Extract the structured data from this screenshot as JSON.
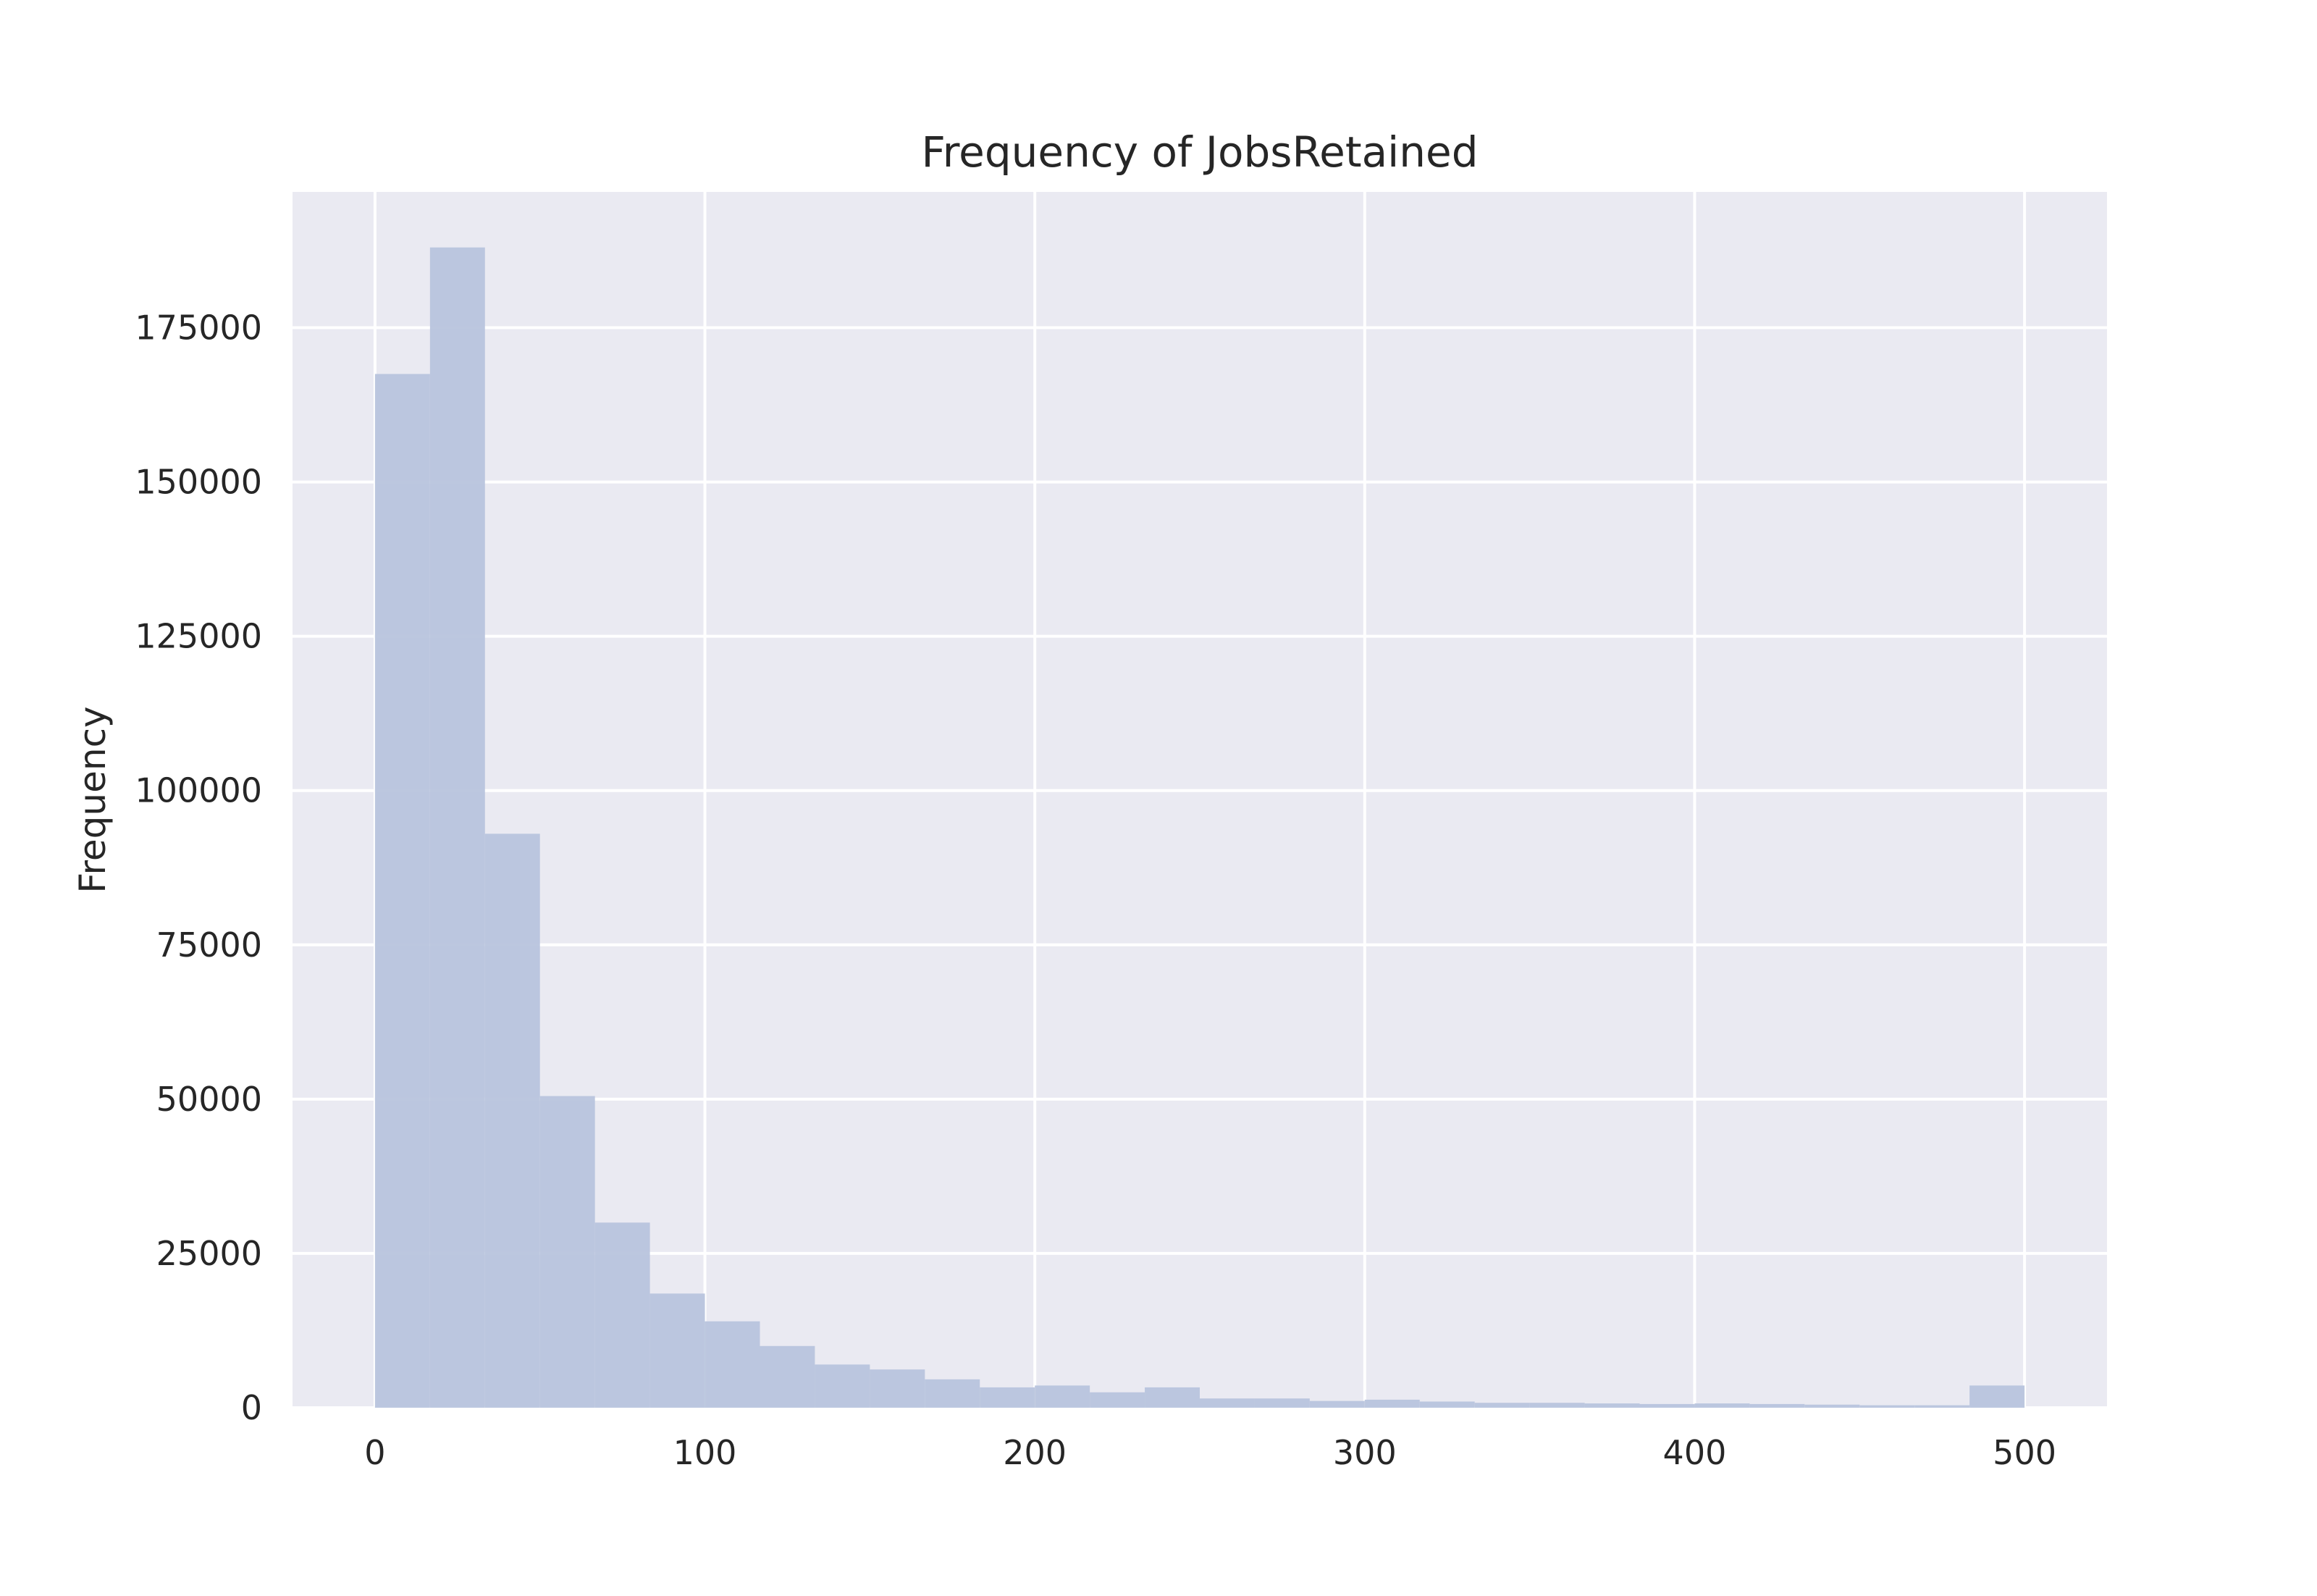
{
  "chart_data": {
    "type": "bar",
    "title": "Frequency of JobsRetained",
    "xlabel": "",
    "ylabel": "Frequency",
    "xlim": [
      -25,
      525
    ],
    "ylim": [
      0,
      197000
    ],
    "x_ticks": [
      0,
      100,
      200,
      300,
      400,
      500
    ],
    "y_ticks": [
      0,
      25000,
      50000,
      75000,
      100000,
      125000,
      150000,
      175000
    ],
    "grid": true,
    "bins": [
      {
        "x0": 0.0,
        "x1": 16.67,
        "count": 167500
      },
      {
        "x0": 16.67,
        "x1": 33.33,
        "count": 188000
      },
      {
        "x0": 33.33,
        "x1": 50.0,
        "count": 93000
      },
      {
        "x0": 50.0,
        "x1": 66.67,
        "count": 50500
      },
      {
        "x0": 66.67,
        "x1": 83.33,
        "count": 30000
      },
      {
        "x0": 83.33,
        "x1": 100.0,
        "count": 18500
      },
      {
        "x0": 100.0,
        "x1": 116.67,
        "count": 14000
      },
      {
        "x0": 116.67,
        "x1": 133.33,
        "count": 10000
      },
      {
        "x0": 133.33,
        "x1": 150.0,
        "count": 7000
      },
      {
        "x0": 150.0,
        "x1": 166.67,
        "count": 6200
      },
      {
        "x0": 166.67,
        "x1": 183.33,
        "count": 4600
      },
      {
        "x0": 183.33,
        "x1": 200.0,
        "count": 3300
      },
      {
        "x0": 200.0,
        "x1": 216.67,
        "count": 3600
      },
      {
        "x0": 216.67,
        "x1": 233.33,
        "count": 2500
      },
      {
        "x0": 233.33,
        "x1": 250.0,
        "count": 3300
      },
      {
        "x0": 250.0,
        "x1": 266.67,
        "count": 1500
      },
      {
        "x0": 266.67,
        "x1": 283.33,
        "count": 1500
      },
      {
        "x0": 283.33,
        "x1": 300.0,
        "count": 1100
      },
      {
        "x0": 300.0,
        "x1": 316.67,
        "count": 1300
      },
      {
        "x0": 316.67,
        "x1": 333.33,
        "count": 1000
      },
      {
        "x0": 333.33,
        "x1": 350.0,
        "count": 800
      },
      {
        "x0": 350.0,
        "x1": 366.67,
        "count": 800
      },
      {
        "x0": 366.67,
        "x1": 383.33,
        "count": 700
      },
      {
        "x0": 383.33,
        "x1": 400.0,
        "count": 600
      },
      {
        "x0": 400.0,
        "x1": 416.67,
        "count": 700
      },
      {
        "x0": 416.67,
        "x1": 433.33,
        "count": 600
      },
      {
        "x0": 433.33,
        "x1": 450.0,
        "count": 500
      },
      {
        "x0": 450.0,
        "x1": 466.67,
        "count": 400
      },
      {
        "x0": 466.67,
        "x1": 483.33,
        "count": 400
      },
      {
        "x0": 483.33,
        "x1": 500.0,
        "count": 3600
      }
    ],
    "colors": {
      "background": "#eaeaf2",
      "grid": "#ffffff",
      "bar": "#b8c4dd",
      "text": "#262626"
    }
  }
}
